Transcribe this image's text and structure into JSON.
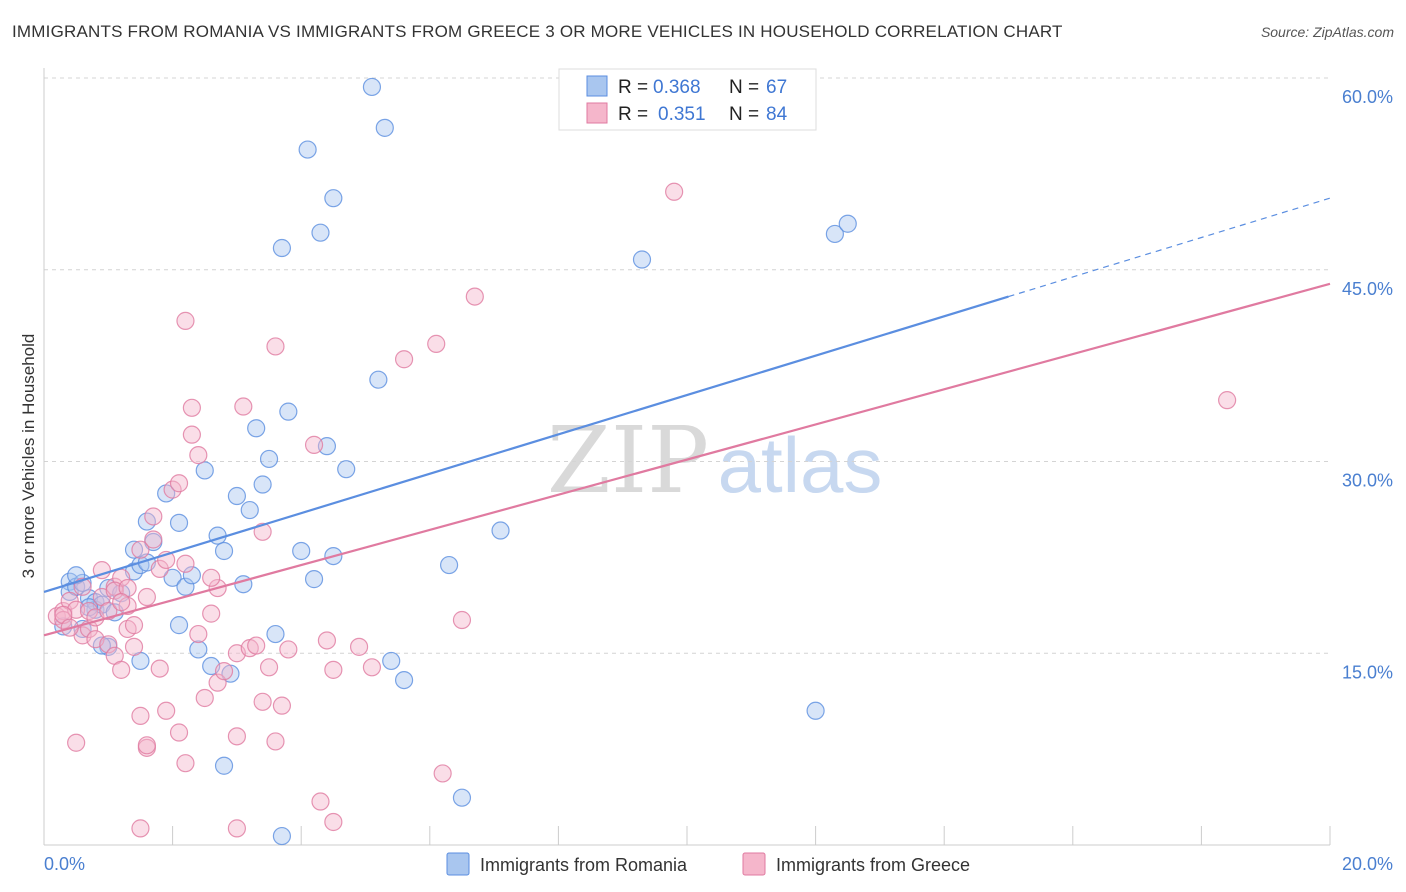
{
  "header": {
    "title": "IMMIGRANTS FROM ROMANIA VS IMMIGRANTS FROM GREECE 3 OR MORE VEHICLES IN HOUSEHOLD CORRELATION CHART",
    "source": "Source: ZipAtlas.com"
  },
  "watermark": {
    "zip": "ZIP",
    "atlas": "atlas"
  },
  "chart_data": {
    "type": "scatter",
    "title": "IMMIGRANTS FROM ROMANIA VS IMMIGRANTS FROM GREECE 3 OR MORE VEHICLES IN HOUSEHOLD CORRELATION CHART",
    "xlabel": "",
    "ylabel": "3 or more Vehicles in Household",
    "xlim": [
      0,
      20
    ],
    "ylim": [
      0,
      60
    ],
    "x_tick_labels": [
      "0.0%",
      "20.0%"
    ],
    "y_tick_values": [
      15,
      30,
      45,
      60
    ],
    "y_tick_labels": [
      "15.0%",
      "30.0%",
      "45.0%",
      "60.0%"
    ],
    "legend": {
      "r_label": "R =",
      "n_label": "N =",
      "entries": [
        {
          "r": "0.368",
          "n": "67"
        },
        {
          "r": "0.351",
          "n": "84"
        }
      ]
    },
    "series": [
      {
        "name": "Immigrants from Romania",
        "color": "#5b8ee0",
        "fill": "#a9c6ef",
        "trend": {
          "x0": 0,
          "y0": 19.8,
          "x1": 15,
          "y1": 42.9,
          "dash_x1": 20,
          "dash_y1": 50.6
        },
        "points": [
          [
            0.3,
            17.1
          ],
          [
            0.4,
            20.6
          ],
          [
            0.4,
            19.8
          ],
          [
            0.5,
            20.2
          ],
          [
            0.6,
            20.5
          ],
          [
            0.7,
            19.3
          ],
          [
            0.8,
            18.4
          ],
          [
            0.8,
            19.0
          ],
          [
            0.9,
            18.8
          ],
          [
            1.0,
            20.1
          ],
          [
            1.0,
            15.5
          ],
          [
            1.1,
            18.2
          ],
          [
            1.2,
            19.7
          ],
          [
            0.5,
            21.1
          ],
          [
            0.9,
            15.6
          ],
          [
            0.7,
            18.6
          ],
          [
            1.4,
            21.4
          ],
          [
            1.5,
            14.4
          ],
          [
            1.4,
            23.1
          ],
          [
            1.5,
            21.9
          ],
          [
            1.6,
            25.3
          ],
          [
            1.6,
            22.1
          ],
          [
            1.7,
            23.7
          ],
          [
            1.9,
            27.5
          ],
          [
            2.0,
            20.9
          ],
          [
            2.1,
            17.2
          ],
          [
            2.1,
            25.2
          ],
          [
            2.2,
            20.2
          ],
          [
            2.3,
            21.1
          ],
          [
            2.4,
            15.3
          ],
          [
            2.5,
            29.3
          ],
          [
            2.6,
            14.0
          ],
          [
            2.7,
            24.2
          ],
          [
            2.8,
            23.0
          ],
          [
            2.9,
            13.4
          ],
          [
            3.0,
            27.3
          ],
          [
            3.1,
            20.4
          ],
          [
            3.2,
            26.2
          ],
          [
            3.3,
            32.6
          ],
          [
            3.4,
            28.2
          ],
          [
            3.5,
            30.2
          ],
          [
            3.6,
            16.5
          ],
          [
            3.7,
            46.7
          ],
          [
            3.8,
            33.9
          ],
          [
            4.0,
            23.0
          ],
          [
            4.2,
            20.8
          ],
          [
            4.4,
            31.2
          ],
          [
            4.5,
            22.6
          ],
          [
            4.7,
            29.4
          ],
          [
            5.1,
            59.3
          ],
          [
            5.3,
            56.1
          ],
          [
            4.1,
            54.4
          ],
          [
            4.3,
            47.9
          ],
          [
            5.2,
            36.4
          ],
          [
            4.5,
            50.6
          ],
          [
            5.4,
            14.4
          ],
          [
            5.6,
            12.9
          ],
          [
            6.3,
            21.9
          ],
          [
            7.1,
            24.6
          ],
          [
            9.3,
            45.8
          ],
          [
            12.0,
            10.5
          ],
          [
            12.3,
            47.8
          ],
          [
            12.5,
            48.6
          ],
          [
            6.5,
            3.7
          ],
          [
            2.8,
            6.2
          ],
          [
            0.6,
            16.9
          ],
          [
            3.7,
            0.7
          ]
        ]
      },
      {
        "name": "Immigrants from Greece",
        "color": "#e07aa0",
        "fill": "#f5b6cb",
        "trend": {
          "x0": 0,
          "y0": 16.4,
          "x1": 20,
          "y1": 43.9
        },
        "points": [
          [
            0.2,
            17.9
          ],
          [
            0.3,
            18.3
          ],
          [
            0.3,
            17.6
          ],
          [
            0.4,
            19.1
          ],
          [
            0.5,
            18.4
          ],
          [
            0.6,
            16.4
          ],
          [
            0.7,
            16.9
          ],
          [
            0.7,
            18.3
          ],
          [
            0.8,
            17.8
          ],
          [
            0.8,
            16.1
          ],
          [
            0.9,
            19.4
          ],
          [
            1.0,
            15.7
          ],
          [
            1.0,
            18.3
          ],
          [
            1.1,
            20.2
          ],
          [
            1.1,
            14.8
          ],
          [
            1.2,
            20.9
          ],
          [
            1.2,
            13.7
          ],
          [
            1.3,
            18.7
          ],
          [
            1.3,
            16.9
          ],
          [
            1.4,
            17.2
          ],
          [
            1.4,
            15.5
          ],
          [
            1.5,
            23.1
          ],
          [
            1.5,
            10.1
          ],
          [
            1.6,
            19.4
          ],
          [
            1.6,
            7.6
          ],
          [
            1.7,
            23.9
          ],
          [
            1.7,
            25.7
          ],
          [
            1.8,
            13.8
          ],
          [
            1.8,
            21.6
          ],
          [
            1.9,
            22.3
          ],
          [
            1.9,
            10.5
          ],
          [
            2.0,
            27.8
          ],
          [
            2.1,
            28.3
          ],
          [
            2.1,
            8.8
          ],
          [
            2.2,
            22.0
          ],
          [
            2.2,
            6.4
          ],
          [
            2.3,
            32.1
          ],
          [
            2.3,
            34.2
          ],
          [
            2.4,
            16.5
          ],
          [
            2.4,
            30.5
          ],
          [
            2.5,
            11.5
          ],
          [
            2.6,
            18.1
          ],
          [
            2.7,
            20.1
          ],
          [
            2.7,
            12.7
          ],
          [
            2.8,
            13.6
          ],
          [
            3.0,
            8.5
          ],
          [
            3.0,
            15.0
          ],
          [
            3.1,
            34.3
          ],
          [
            3.2,
            15.4
          ],
          [
            3.3,
            15.6
          ],
          [
            3.4,
            24.5
          ],
          [
            3.4,
            11.2
          ],
          [
            3.5,
            13.9
          ],
          [
            3.6,
            8.1
          ],
          [
            3.6,
            39.0
          ],
          [
            3.7,
            10.9
          ],
          [
            3.8,
            15.3
          ],
          [
            4.2,
            31.3
          ],
          [
            4.4,
            16.0
          ],
          [
            4.5,
            13.7
          ],
          [
            2.2,
            41.0
          ],
          [
            4.3,
            3.4
          ],
          [
            4.9,
            15.5
          ],
          [
            5.1,
            13.9
          ],
          [
            6.2,
            5.6
          ],
          [
            5.6,
            38.0
          ],
          [
            6.1,
            39.2
          ],
          [
            6.7,
            42.9
          ],
          [
            6.5,
            17.6
          ],
          [
            9.8,
            51.1
          ],
          [
            18.4,
            34.8
          ],
          [
            3.0,
            1.3
          ],
          [
            4.5,
            1.8
          ],
          [
            1.5,
            1.3
          ],
          [
            0.5,
            8.0
          ],
          [
            0.3,
            18.0
          ],
          [
            0.9,
            21.5
          ],
          [
            1.1,
            19.9
          ],
          [
            0.4,
            17.0
          ],
          [
            1.6,
            7.8
          ],
          [
            2.6,
            20.9
          ],
          [
            1.3,
            20.1
          ],
          [
            0.6,
            20.2
          ],
          [
            1.2,
            19.0
          ]
        ]
      }
    ]
  }
}
